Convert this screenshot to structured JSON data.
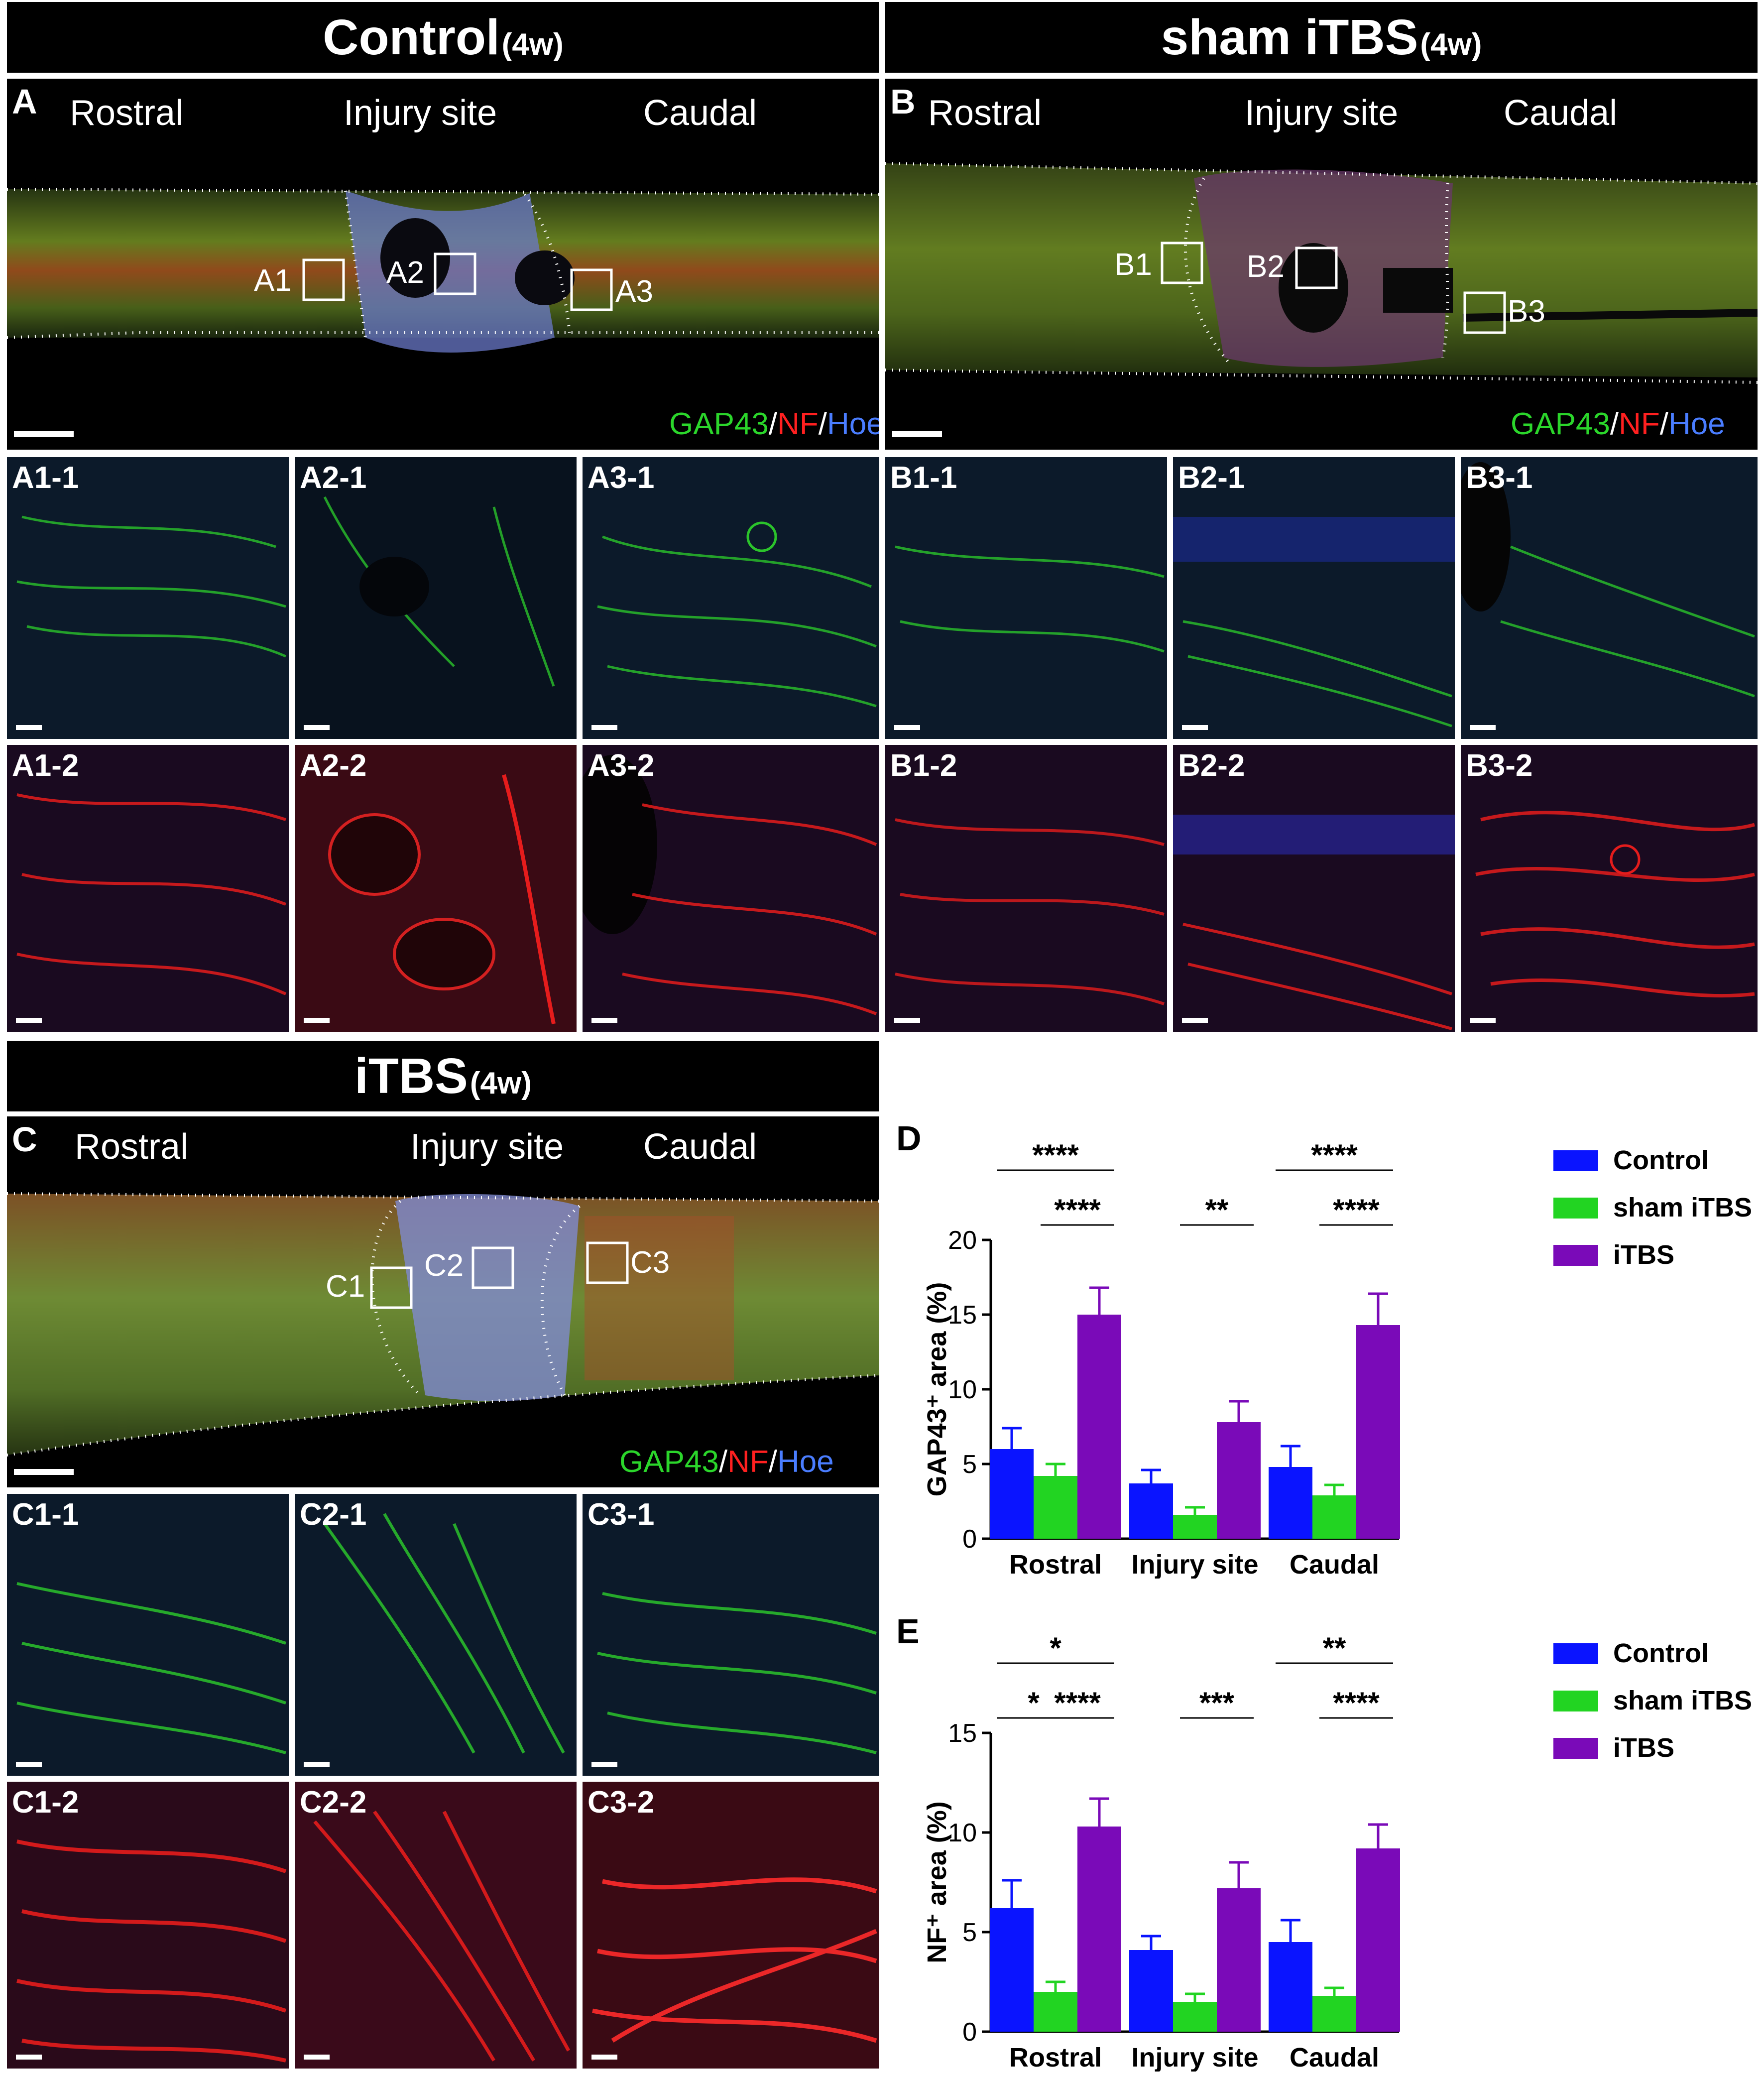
{
  "panels": {
    "A": {
      "header_main": "Control",
      "header_sub": "(4w)",
      "letter": "A",
      "region_labels": [
        "Rostral",
        "Injury site",
        "Caudal"
      ],
      "boxes": [
        "A1",
        "A2",
        "A3"
      ],
      "tiles_green": [
        "A1-1",
        "A2-1",
        "A3-1"
      ],
      "tiles_red": [
        "A1-2",
        "A2-2",
        "A3-2"
      ]
    },
    "B": {
      "header_main": "sham iTBS",
      "header_sub": "(4w)",
      "letter": "B",
      "region_labels": [
        "Rostral",
        "Injury site",
        "Caudal"
      ],
      "boxes": [
        "B1",
        "B2",
        "B3"
      ],
      "tiles_green": [
        "B1-1",
        "B2-1",
        "B3-1"
      ],
      "tiles_red": [
        "B1-2",
        "B2-2",
        "B3-2"
      ]
    },
    "C": {
      "header_main": "iTBS",
      "header_sub": "(4w)",
      "letter": "C",
      "region_labels": [
        "Rostral",
        "Injury site",
        "Caudal"
      ],
      "boxes": [
        "C1",
        "C2",
        "C3"
      ],
      "tiles_green": [
        "C1-1",
        "C2-1",
        "C3-1"
      ],
      "tiles_red": [
        "C1-2",
        "C2-2",
        "C3-2"
      ]
    }
  },
  "stain_legend": {
    "gap43": "GAP43",
    "slash1": "/",
    "nf": "NF",
    "slash2": "/",
    "hoe": "Hoe",
    "colors": {
      "gap43": "#2bd62b",
      "nf": "#ff2020",
      "hoe": "#4a7dff"
    }
  },
  "chart_data": [
    {
      "panel": "D",
      "type": "bar",
      "categories": [
        "Rostral",
        "Injury site",
        "Caudal"
      ],
      "ylabel": "GAP43⁺ area (%)",
      "ylim": [
        0,
        20
      ],
      "yticks": [
        "0",
        "5",
        "10",
        "15",
        "20"
      ],
      "series": [
        {
          "name": "Control",
          "color": "#0a14ff",
          "values": [
            6.0,
            3.7,
            4.8
          ],
          "errors": [
            1.4,
            0.9,
            1.4
          ]
        },
        {
          "name": "sham iTBS",
          "color": "#22d422",
          "values": [
            4.2,
            1.6,
            2.9
          ],
          "errors": [
            0.8,
            0.5,
            0.7
          ]
        },
        {
          "name": "iTBS",
          "color": "#7a0ab8",
          "values": [
            15.0,
            7.8,
            14.3
          ],
          "errors": [
            1.8,
            1.4,
            2.1
          ]
        }
      ],
      "significance": [
        "****",
        "****",
        "**",
        "****",
        "****"
      ]
    },
    {
      "panel": "E",
      "type": "bar",
      "categories": [
        "Rostral",
        "Injury site",
        "Caudal"
      ],
      "ylabel": "NF⁺ area (%)",
      "ylim": [
        0,
        15
      ],
      "yticks": [
        "0",
        "5",
        "10",
        "15"
      ],
      "series": [
        {
          "name": "Control",
          "color": "#0a14ff",
          "values": [
            6.2,
            4.1,
            4.5
          ],
          "errors": [
            1.4,
            0.7,
            1.1
          ]
        },
        {
          "name": "sham iTBS",
          "color": "#22d422",
          "values": [
            2.0,
            1.5,
            1.8
          ],
          "errors": [
            0.5,
            0.4,
            0.4
          ]
        },
        {
          "name": "iTBS",
          "color": "#7a0ab8",
          "values": [
            10.3,
            7.2,
            9.2
          ],
          "errors": [
            1.4,
            1.3,
            1.2
          ]
        }
      ],
      "significance": [
        "*",
        "*",
        "****",
        "***",
        "**",
        "****"
      ]
    }
  ]
}
